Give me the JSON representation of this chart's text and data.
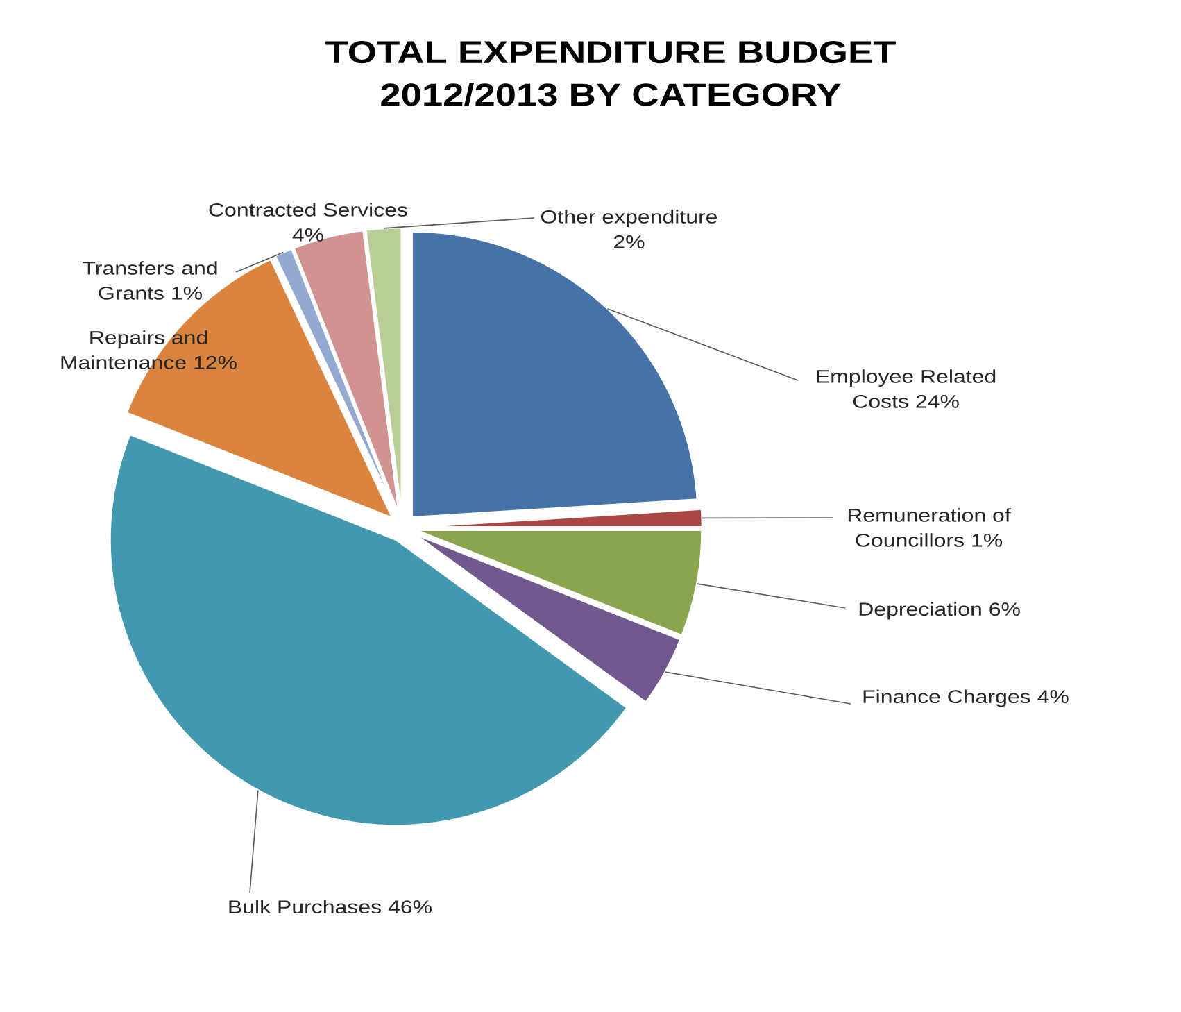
{
  "chart_data": {
    "type": "pie",
    "title": "TOTAL EXPENDITURE BUDGET 2012/2013 BY CATEGORY",
    "categories": [
      "Employee Related Costs",
      "Remuneration of Councillors",
      "Depreciation",
      "Finance Charges",
      "Bulk Purchases",
      "Repairs and Maintenance",
      "Transfers and Grants",
      "Contracted Services",
      "Other expenditure"
    ],
    "values": [
      24,
      1,
      6,
      4,
      46,
      12,
      1,
      4,
      2
    ],
    "value_labels": [
      "24%",
      "1%",
      "6%",
      "4%",
      "46%",
      "12%",
      "1%",
      "4%",
      "2%"
    ],
    "colors": [
      "#4572a7",
      "#aa4643",
      "#89a54e",
      "#71588f",
      "#4198af",
      "#db843d",
      "#93a9cf",
      "#d19392",
      "#b9cd96"
    ]
  }
}
